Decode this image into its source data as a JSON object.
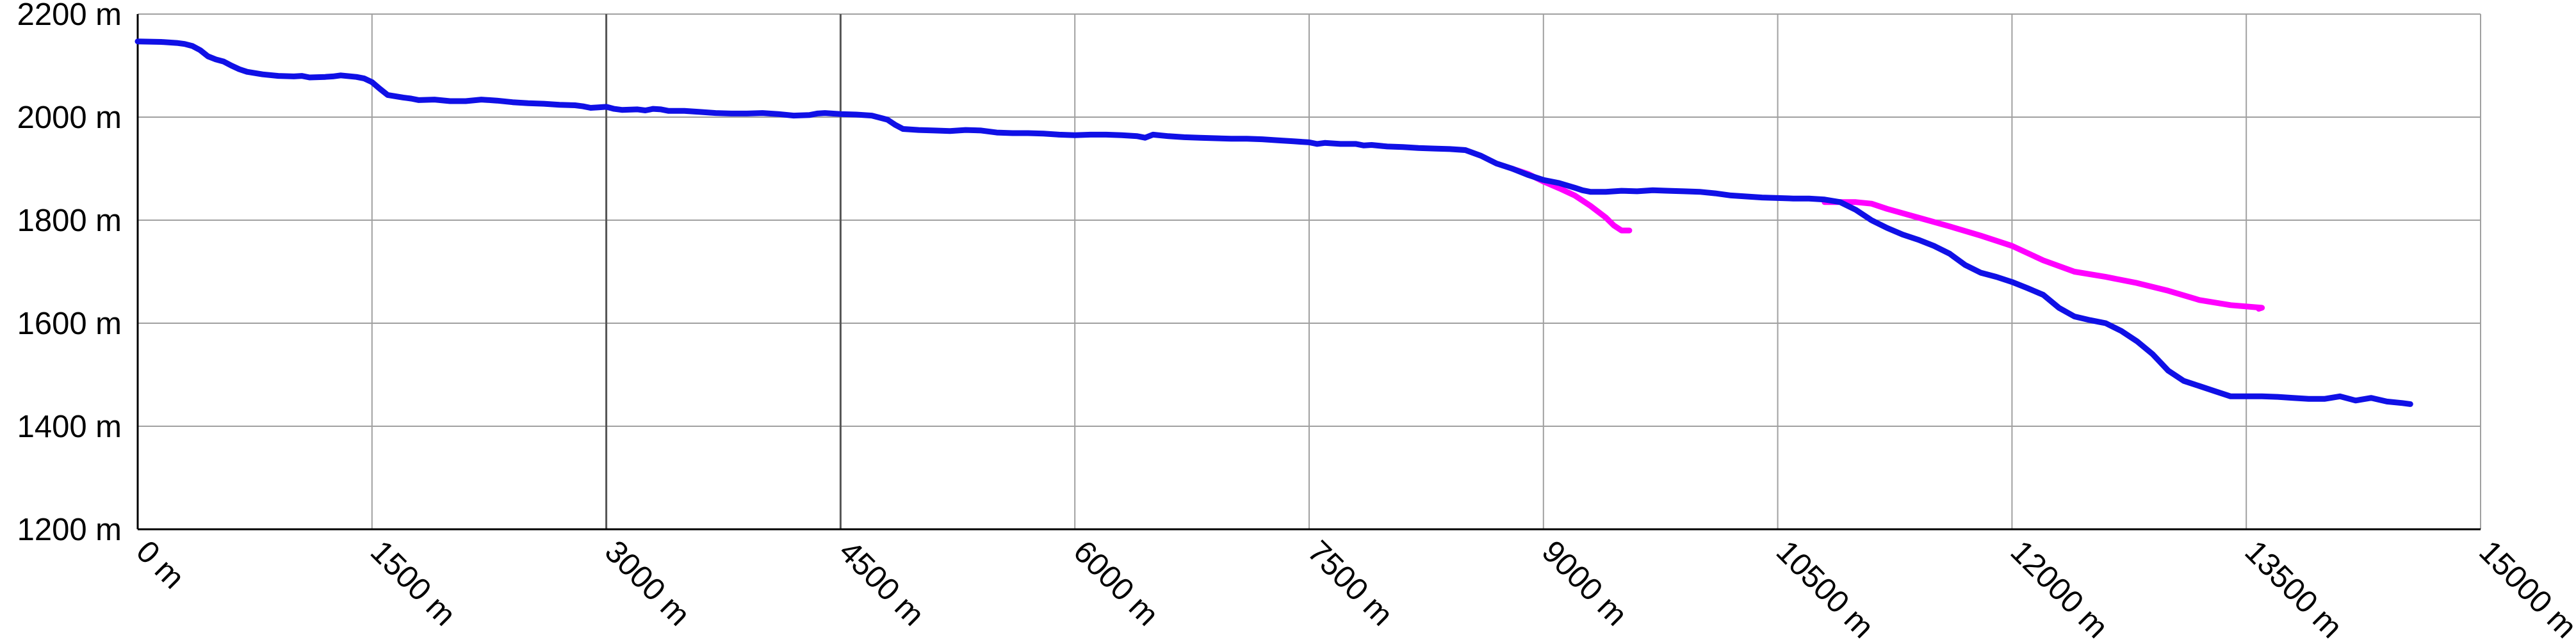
{
  "chart_data": {
    "type": "line",
    "xlim": [
      0,
      15000
    ],
    "ylim": [
      1200,
      2200
    ],
    "x_ticks": [
      {
        "value": 0,
        "label": "0 m"
      },
      {
        "value": 1500,
        "label": "1500 m"
      },
      {
        "value": 3000,
        "label": "3000 m"
      },
      {
        "value": 4500,
        "label": "4500 m"
      },
      {
        "value": 6000,
        "label": "6000 m"
      },
      {
        "value": 7500,
        "label": "7500 m"
      },
      {
        "value": 9000,
        "label": "9000 m"
      },
      {
        "value": 10500,
        "label": "10500 m"
      },
      {
        "value": 12000,
        "label": "12000 m"
      },
      {
        "value": 13500,
        "label": "13500 m"
      },
      {
        "value": 15000,
        "label": "15000 m"
      }
    ],
    "y_ticks": [
      {
        "value": 1200,
        "label": "1200 m"
      },
      {
        "value": 1400,
        "label": "1400 m"
      },
      {
        "value": 1600,
        "label": "1600 m"
      },
      {
        "value": 1800,
        "label": "1800 m"
      },
      {
        "value": 2000,
        "label": "2000 m"
      },
      {
        "value": 2200,
        "label": "2200 m"
      }
    ],
    "x_tick_rotation": 45,
    "grid": true,
    "major_gridlines_x": [
      3000,
      4500
    ],
    "series": [
      {
        "color": "#ff00ff",
        "points": [
          [
            8800,
            1900
          ],
          [
            8900,
            1890
          ],
          [
            9000,
            1875
          ],
          [
            9100,
            1862
          ],
          [
            9200,
            1848
          ],
          [
            9300,
            1828
          ],
          [
            9400,
            1805
          ],
          [
            9450,
            1790
          ],
          [
            9500,
            1780
          ],
          [
            9550,
            1780
          ]
        ]
      },
      {
        "color": "#ff00ff",
        "points": [
          [
            10800,
            1835
          ],
          [
            10900,
            1835
          ],
          [
            11000,
            1835
          ],
          [
            11100,
            1832
          ],
          [
            11200,
            1822
          ],
          [
            11400,
            1805
          ],
          [
            11600,
            1788
          ],
          [
            11800,
            1770
          ],
          [
            12000,
            1750
          ],
          [
            12200,
            1722
          ],
          [
            12400,
            1700
          ],
          [
            12600,
            1690
          ],
          [
            12800,
            1678
          ],
          [
            13000,
            1663
          ],
          [
            13200,
            1645
          ],
          [
            13400,
            1635
          ],
          [
            13600,
            1630
          ],
          [
            13580,
            1628
          ]
        ]
      },
      {
        "color": "#1010e6",
        "points": [
          [
            0,
            2147
          ],
          [
            150,
            2146
          ],
          [
            250,
            2144
          ],
          [
            300,
            2142
          ],
          [
            350,
            2138
          ],
          [
            400,
            2130
          ],
          [
            450,
            2118
          ],
          [
            500,
            2112
          ],
          [
            550,
            2108
          ],
          [
            600,
            2100
          ],
          [
            650,
            2093
          ],
          [
            700,
            2088
          ],
          [
            800,
            2083
          ],
          [
            900,
            2080
          ],
          [
            1000,
            2079
          ],
          [
            1050,
            2080
          ],
          [
            1100,
            2077
          ],
          [
            1200,
            2078
          ],
          [
            1250,
            2079
          ],
          [
            1300,
            2081
          ],
          [
            1400,
            2078
          ],
          [
            1450,
            2075
          ],
          [
            1500,
            2068
          ],
          [
            1550,
            2055
          ],
          [
            1600,
            2043
          ],
          [
            1700,
            2038
          ],
          [
            1750,
            2036
          ],
          [
            1800,
            2033
          ],
          [
            1900,
            2034
          ],
          [
            2000,
            2031
          ],
          [
            2100,
            2031
          ],
          [
            2200,
            2034
          ],
          [
            2300,
            2032
          ],
          [
            2400,
            2029
          ],
          [
            2500,
            2027
          ],
          [
            2600,
            2026
          ],
          [
            2700,
            2024
          ],
          [
            2800,
            2023
          ],
          [
            2850,
            2021
          ],
          [
            2900,
            2018
          ],
          [
            2950,
            2019
          ],
          [
            3000,
            2020
          ],
          [
            3050,
            2016
          ],
          [
            3100,
            2014
          ],
          [
            3200,
            2015
          ],
          [
            3250,
            2013
          ],
          [
            3300,
            2016
          ],
          [
            3350,
            2015
          ],
          [
            3400,
            2012
          ],
          [
            3500,
            2012
          ],
          [
            3600,
            2010
          ],
          [
            3700,
            2008
          ],
          [
            3800,
            2007
          ],
          [
            3900,
            2007
          ],
          [
            4000,
            2008
          ],
          [
            4100,
            2006
          ],
          [
            4200,
            2003
          ],
          [
            4300,
            2004
          ],
          [
            4350,
            2007
          ],
          [
            4400,
            2008
          ],
          [
            4500,
            2006
          ],
          [
            4600,
            2005
          ],
          [
            4700,
            2003
          ],
          [
            4800,
            1995
          ],
          [
            4850,
            1985
          ],
          [
            4900,
            1977
          ],
          [
            5000,
            1975
          ],
          [
            5100,
            1974
          ],
          [
            5200,
            1973
          ],
          [
            5300,
            1975
          ],
          [
            5400,
            1974
          ],
          [
            5500,
            1970
          ],
          [
            5600,
            1969
          ],
          [
            5700,
            1969
          ],
          [
            5800,
            1968
          ],
          [
            5900,
            1966
          ],
          [
            6000,
            1965
          ],
          [
            6100,
            1966
          ],
          [
            6200,
            1966
          ],
          [
            6300,
            1965
          ],
          [
            6400,
            1963
          ],
          [
            6450,
            1960
          ],
          [
            6500,
            1966
          ],
          [
            6600,
            1963
          ],
          [
            6700,
            1961
          ],
          [
            6800,
            1960
          ],
          [
            6900,
            1959
          ],
          [
            7000,
            1958
          ],
          [
            7100,
            1958
          ],
          [
            7200,
            1957
          ],
          [
            7300,
            1955
          ],
          [
            7400,
            1953
          ],
          [
            7500,
            1951
          ],
          [
            7550,
            1948
          ],
          [
            7600,
            1950
          ],
          [
            7700,
            1948
          ],
          [
            7800,
            1948
          ],
          [
            7850,
            1945
          ],
          [
            7900,
            1946
          ],
          [
            8000,
            1943
          ],
          [
            8100,
            1942
          ],
          [
            8200,
            1940
          ],
          [
            8300,
            1939
          ],
          [
            8400,
            1938
          ],
          [
            8500,
            1936
          ],
          [
            8600,
            1925
          ],
          [
            8700,
            1910
          ],
          [
            8800,
            1900
          ],
          [
            8900,
            1888
          ],
          [
            9000,
            1878
          ],
          [
            9100,
            1872
          ],
          [
            9200,
            1863
          ],
          [
            9250,
            1858
          ],
          [
            9300,
            1855
          ],
          [
            9400,
            1855
          ],
          [
            9500,
            1857
          ],
          [
            9600,
            1856
          ],
          [
            9700,
            1858
          ],
          [
            9800,
            1857
          ],
          [
            9900,
            1856
          ],
          [
            10000,
            1855
          ],
          [
            10100,
            1852
          ],
          [
            10200,
            1848
          ],
          [
            10300,
            1846
          ],
          [
            10400,
            1844
          ],
          [
            10500,
            1843
          ],
          [
            10600,
            1842
          ],
          [
            10700,
            1842
          ],
          [
            10800,
            1840
          ],
          [
            10900,
            1835
          ],
          [
            11000,
            1820
          ],
          [
            11100,
            1800
          ],
          [
            11200,
            1785
          ],
          [
            11300,
            1772
          ],
          [
            11400,
            1762
          ],
          [
            11500,
            1750
          ],
          [
            11600,
            1735
          ],
          [
            11700,
            1713
          ],
          [
            11800,
            1698
          ],
          [
            11900,
            1690
          ],
          [
            12000,
            1680
          ],
          [
            12100,
            1668
          ],
          [
            12200,
            1655
          ],
          [
            12300,
            1630
          ],
          [
            12400,
            1613
          ],
          [
            12500,
            1606
          ],
          [
            12600,
            1600
          ],
          [
            12700,
            1585
          ],
          [
            12800,
            1565
          ],
          [
            12900,
            1540
          ],
          [
            13000,
            1508
          ],
          [
            13100,
            1488
          ],
          [
            13200,
            1478
          ],
          [
            13300,
            1468
          ],
          [
            13400,
            1458
          ],
          [
            13500,
            1458
          ],
          [
            13600,
            1458
          ],
          [
            13700,
            1457
          ],
          [
            13800,
            1455
          ],
          [
            13900,
            1453
          ],
          [
            14000,
            1453
          ],
          [
            14100,
            1458
          ],
          [
            14200,
            1450
          ],
          [
            14300,
            1455
          ],
          [
            14400,
            1448
          ],
          [
            14500,
            1445
          ],
          [
            14550,
            1443
          ]
        ]
      }
    ]
  }
}
